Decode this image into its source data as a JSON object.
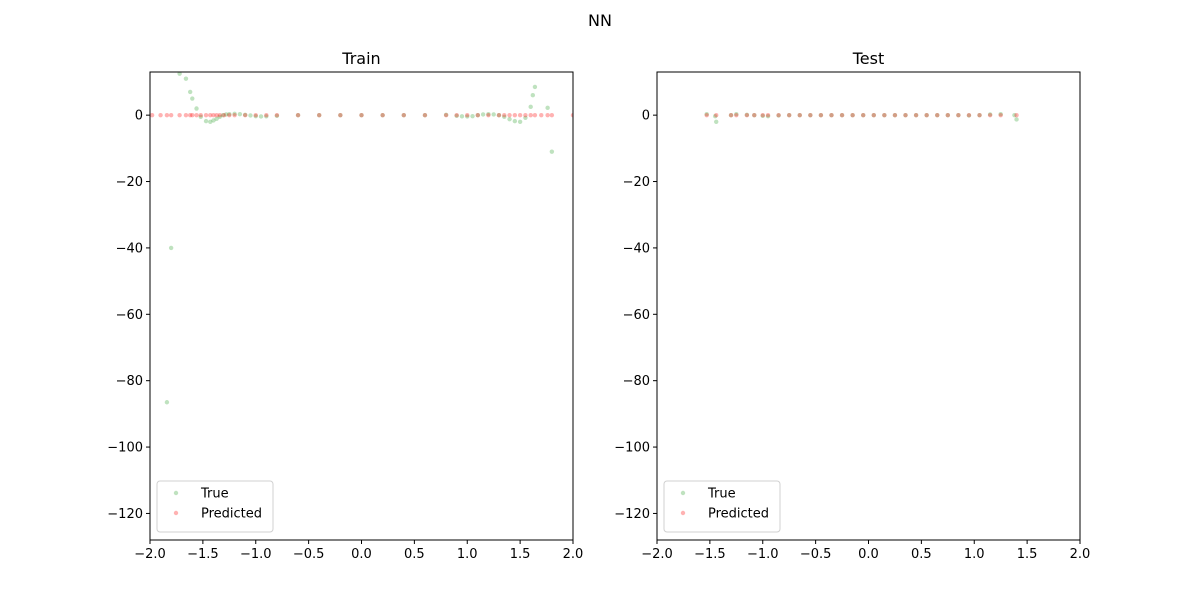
{
  "figure": {
    "suptitle": "NN"
  },
  "chart_data": [
    {
      "type": "scatter",
      "title": "Train",
      "xlim": [
        -2.0,
        2.0
      ],
      "ylim": [
        -128,
        13
      ],
      "xticks": [
        -2.0,
        -1.5,
        -1.0,
        -0.5,
        0.0,
        0.5,
        1.0,
        1.5,
        2.0
      ],
      "xtick_labels": [
        "−2.0",
        "−1.5",
        "−1.0",
        "−0.5",
        "0.0",
        "0.5",
        "1.0",
        "1.5",
        "2.0"
      ],
      "yticks": [
        0,
        -20,
        -40,
        -60,
        -80,
        -100,
        -120
      ],
      "ytick_labels": [
        "0",
        "−20",
        "−40",
        "−60",
        "−80",
        "−100",
        "−120"
      ],
      "legend_position": "lower-left",
      "series": [
        {
          "name": "True",
          "color": "#2ca02c",
          "x": [
            -1.84,
            -1.8,
            -1.72,
            -1.66,
            -1.62,
            -1.6,
            -1.56,
            -1.52,
            -1.47,
            -1.43,
            -1.4,
            -1.37,
            -1.34,
            -1.31,
            -1.28,
            -1.25,
            -1.2,
            -1.15,
            -1.1,
            -1.05,
            -1.0,
            -0.95,
            -0.9,
            -0.8,
            -0.6,
            -0.4,
            -0.2,
            0.0,
            0.2,
            0.4,
            0.6,
            0.8,
            0.9,
            0.95,
            1.0,
            1.05,
            1.1,
            1.15,
            1.2,
            1.25,
            1.3,
            1.35,
            1.4,
            1.45,
            1.5,
            1.55,
            1.6,
            1.62,
            1.64,
            1.76,
            1.8
          ],
          "y": [
            -86.5,
            -40,
            12.5,
            11,
            7,
            5,
            2,
            -0.5,
            -1.8,
            -2,
            -1.6,
            -1.1,
            -0.5,
            0,
            0.2,
            0.3,
            0.4,
            0.3,
            0.1,
            -0.1,
            -0.3,
            -0.4,
            -0.35,
            -0.2,
            0,
            0,
            0,
            0,
            0,
            0,
            0,
            0.1,
            -0.2,
            -0.35,
            -0.4,
            -0.3,
            0,
            0.2,
            0.3,
            0.2,
            0,
            -0.5,
            -1.2,
            -1.8,
            -2,
            -0.8,
            2.5,
            6,
            8.5,
            2.2,
            -11
          ]
        },
        {
          "name": "Predicted",
          "color": "#ff0000",
          "x": [
            -1.98,
            -1.9,
            -1.84,
            -1.8,
            -1.72,
            -1.66,
            -1.62,
            -1.6,
            -1.56,
            -1.52,
            -1.47,
            -1.43,
            -1.4,
            -1.37,
            -1.34,
            -1.3,
            -1.25,
            -1.2,
            -1.1,
            -1.0,
            -0.9,
            -0.8,
            -0.6,
            -0.4,
            -0.2,
            0.0,
            0.2,
            0.4,
            0.6,
            0.8,
            0.9,
            1.0,
            1.1,
            1.2,
            1.3,
            1.35,
            1.4,
            1.45,
            1.5,
            1.55,
            1.6,
            1.64,
            1.7,
            1.76,
            1.8,
            2.0
          ],
          "y": [
            0,
            0,
            0,
            0,
            0,
            0,
            0,
            0,
            0,
            0,
            0,
            0,
            0,
            0,
            0,
            0,
            0,
            0,
            0,
            0,
            0,
            0,
            0,
            0,
            0,
            0,
            0,
            0,
            0,
            0,
            0,
            0,
            0,
            0,
            0,
            0,
            0,
            0,
            0,
            0,
            0,
            0,
            0,
            0,
            0,
            0
          ]
        }
      ]
    },
    {
      "type": "scatter",
      "title": "Test",
      "xlim": [
        -2.0,
        2.0
      ],
      "ylim": [
        -128,
        13
      ],
      "xticks": [
        -2.0,
        -1.5,
        -1.0,
        -0.5,
        0.0,
        0.5,
        1.0,
        1.5,
        2.0
      ],
      "xtick_labels": [
        "−2.0",
        "−1.5",
        "−1.0",
        "−0.5",
        "0.0",
        "0.5",
        "1.0",
        "1.5",
        "2.0"
      ],
      "yticks": [
        0,
        -20,
        -40,
        -60,
        -80,
        -100,
        -120
      ],
      "ytick_labels": [
        "0",
        "−20",
        "−40",
        "−60",
        "−80",
        "−100",
        "−120"
      ],
      "legend_position": "lower-left",
      "series": [
        {
          "name": "True",
          "color": "#2ca02c",
          "x": [
            -1.53,
            -1.45,
            -1.44,
            -1.3,
            -1.25,
            -1.15,
            -1.08,
            -1.0,
            -0.95,
            -0.85,
            -0.75,
            -0.65,
            -0.55,
            -0.45,
            -0.35,
            -0.25,
            -0.15,
            -0.05,
            0.05,
            0.15,
            0.25,
            0.35,
            0.45,
            0.55,
            0.65,
            0.75,
            0.85,
            0.95,
            1.05,
            1.15,
            1.25,
            1.38,
            1.4
          ],
          "y": [
            0.3,
            -0.3,
            -2.0,
            0.0,
            0.3,
            0.1,
            0.0,
            -0.2,
            -0.3,
            -0.1,
            0.0,
            0.0,
            0.0,
            0.0,
            0.0,
            0.0,
            0.0,
            0.0,
            0.0,
            0.0,
            0.0,
            0.0,
            0.0,
            0.0,
            0.0,
            0.0,
            0.0,
            -0.1,
            0.0,
            0.2,
            0.3,
            0.0,
            -1.3
          ]
        },
        {
          "name": "Predicted",
          "color": "#ff0000",
          "x": [
            -1.53,
            -1.44,
            -1.3,
            -1.25,
            -1.15,
            -1.08,
            -1.0,
            -0.95,
            -0.85,
            -0.75,
            -0.65,
            -0.55,
            -0.45,
            -0.35,
            -0.25,
            -0.15,
            -0.05,
            0.05,
            0.15,
            0.25,
            0.35,
            0.45,
            0.55,
            0.65,
            0.75,
            0.85,
            0.95,
            1.05,
            1.15,
            1.25,
            1.4
          ],
          "y": [
            0,
            0,
            0,
            0,
            0,
            0,
            0,
            0,
            0,
            0,
            0,
            0,
            0,
            0,
            0,
            0,
            0,
            0,
            0,
            0,
            0,
            0,
            0,
            0,
            0,
            0,
            0,
            0,
            0,
            0,
            0
          ]
        }
      ]
    }
  ]
}
